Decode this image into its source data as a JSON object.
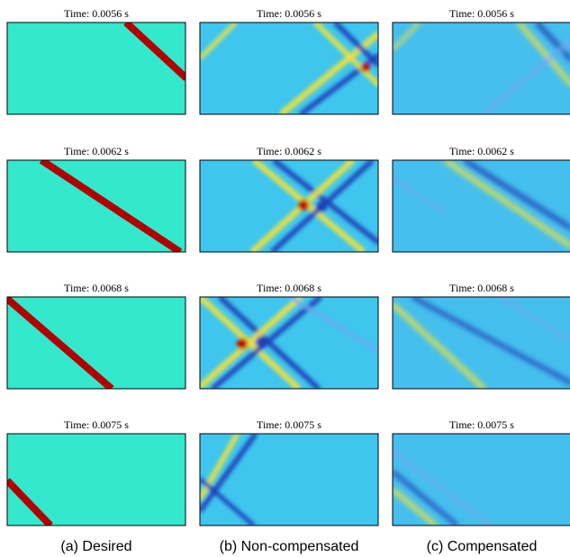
{
  "panels": [
    [
      "Time: 0.0056 s",
      "Time: 0.0056 s",
      "Time: 0.0056 s"
    ],
    [
      "Time: 0.0062 s",
      "Time: 0.0062 s",
      "Time: 0.0062 s"
    ],
    [
      "Time: 0.0068 s",
      "Time: 0.0068 s",
      "Time: 0.0068 s"
    ],
    [
      "Time: 0.0075 s",
      "Time: 0.0075 s",
      "Time: 0.0075 s"
    ]
  ],
  "captions": [
    "(a)  Desired",
    "(b)  Non-compensated",
    "(c)  Compensated"
  ]
}
